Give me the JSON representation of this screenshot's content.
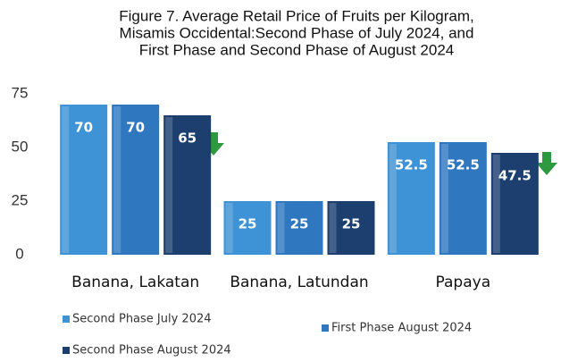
{
  "chart_data": {
    "type": "bar",
    "title": [
      "Figure 7. Average Retail Price of Fruits per Kilogram,",
      "Misamis Occidental:Second Phase  of July 2024, and",
      "First Phase and Second Phase of August 2024"
    ],
    "categories": [
      "Banana, Lakatan",
      "Banana, Latundan",
      "Papaya"
    ],
    "series": [
      {
        "name": "Second Phase July 2024",
        "color": "#3d93d6",
        "values": [
          70,
          25,
          52.5
        ]
      },
      {
        "name": "First Phase August 2024",
        "color": "#2f78c0",
        "values": [
          70,
          25,
          52.5
        ]
      },
      {
        "name": "Second Phase August 2024",
        "color": "#1c3f70",
        "values": [
          65,
          25,
          47.5
        ]
      }
    ],
    "ylim": [
      0,
      75
    ],
    "yticks": [
      0,
      25,
      50,
      75
    ],
    "grid": false
  }
}
